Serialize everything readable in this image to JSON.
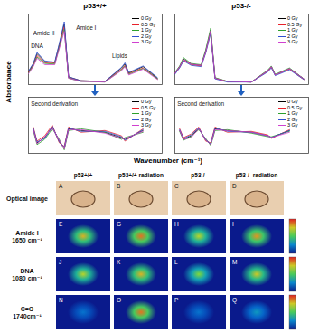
{
  "figure": {
    "y_label": "Absorbance",
    "x_label": "Wavenumber (cm⁻¹)"
  },
  "chart_data": [
    {
      "type": "line",
      "title": "p53+/+",
      "xlim": [
        900,
        3700
      ],
      "ylim": [
        0,
        1.1
      ],
      "tick_labels": false,
      "legend": "top-right",
      "x": [
        900,
        1000,
        1080,
        1240,
        1450,
        1545,
        1650,
        1740,
        2000,
        2500,
        2850,
        2920,
        3000,
        3300,
        3600
      ],
      "series": [
        {
          "name": "0 Gy",
          "color": "#000000",
          "values": [
            0.2,
            0.32,
            0.48,
            0.36,
            0.34,
            0.62,
            0.95,
            0.12,
            0.06,
            0.05,
            0.26,
            0.32,
            0.18,
            0.28,
            0.1
          ]
        },
        {
          "name": "0.5 Gy",
          "color": "#e8202a",
          "values": [
            0.19,
            0.3,
            0.45,
            0.34,
            0.33,
            0.6,
            0.9,
            0.11,
            0.06,
            0.05,
            0.24,
            0.3,
            0.17,
            0.26,
            0.09
          ]
        },
        {
          "name": "1 Gy",
          "color": "#2ca02c",
          "values": [
            0.18,
            0.29,
            0.43,
            0.33,
            0.32,
            0.58,
            0.86,
            0.1,
            0.05,
            0.04,
            0.23,
            0.29,
            0.16,
            0.25,
            0.09
          ]
        },
        {
          "name": "2 Gy",
          "color": "#3050d0",
          "values": [
            0.21,
            0.33,
            0.5,
            0.37,
            0.35,
            0.64,
            0.98,
            0.12,
            0.06,
            0.05,
            0.27,
            0.34,
            0.19,
            0.29,
            0.11
          ]
        },
        {
          "name": "3 Gy",
          "color": "#d040d0",
          "values": [
            0.17,
            0.28,
            0.41,
            0.31,
            0.31,
            0.56,
            0.83,
            0.1,
            0.05,
            0.04,
            0.22,
            0.28,
            0.15,
            0.24,
            0.08
          ]
        }
      ],
      "annotations": [
        {
          "text": "DNA",
          "x": 950,
          "y": 0.6
        },
        {
          "text": "Amide II",
          "x": 1000,
          "y": 0.8
        },
        {
          "text": "Amide I",
          "x": 1900,
          "y": 0.88
        },
        {
          "text": "Lipids",
          "x": 2650,
          "y": 0.45
        }
      ]
    },
    {
      "type": "line",
      "title": "p53-/-",
      "xlim": [
        900,
        3700
      ],
      "ylim": [
        0,
        1.1
      ],
      "tick_labels": false,
      "legend": "top-right",
      "x": [
        900,
        1000,
        1080,
        1240,
        1450,
        1545,
        1650,
        1740,
        2000,
        2500,
        2850,
        2920,
        3000,
        3300,
        3600
      ],
      "series": [
        {
          "name": "0 Gy",
          "color": "#000000",
          "values": [
            0.18,
            0.28,
            0.4,
            0.32,
            0.3,
            0.52,
            0.85,
            0.1,
            0.05,
            0.04,
            0.22,
            0.28,
            0.15,
            0.25,
            0.09
          ]
        },
        {
          "name": "0.5 Gy",
          "color": "#e8202a",
          "values": [
            0.17,
            0.27,
            0.38,
            0.31,
            0.29,
            0.5,
            0.82,
            0.1,
            0.05,
            0.04,
            0.21,
            0.27,
            0.15,
            0.24,
            0.08
          ]
        },
        {
          "name": "1 Gy",
          "color": "#2ca02c",
          "values": [
            0.19,
            0.29,
            0.42,
            0.33,
            0.31,
            0.54,
            0.88,
            0.11,
            0.05,
            0.04,
            0.23,
            0.29,
            0.16,
            0.26,
            0.09
          ]
        },
        {
          "name": "2 Gy",
          "color": "#3050d0",
          "values": [
            0.16,
            0.26,
            0.37,
            0.3,
            0.28,
            0.49,
            0.8,
            0.09,
            0.04,
            0.04,
            0.2,
            0.26,
            0.14,
            0.23,
            0.08
          ]
        },
        {
          "name": "3 Gy",
          "color": "#d040d0",
          "values": [
            0.18,
            0.28,
            0.39,
            0.32,
            0.3,
            0.51,
            0.84,
            0.1,
            0.05,
            0.04,
            0.22,
            0.28,
            0.15,
            0.25,
            0.09
          ]
        }
      ]
    },
    {
      "type": "line",
      "xlim": [
        900,
        3700
      ],
      "ylim": [
        -1.2,
        2.0
      ],
      "tick_labels": false,
      "legend": "top-right",
      "x": [
        1000,
        1080,
        1240,
        1400,
        1545,
        1650,
        1740,
        2000,
        2500,
        2850,
        2920,
        3300
      ],
      "series": [
        {
          "name": "0 Gy",
          "color": "#000000",
          "values": [
            0.2,
            -0.6,
            -0.3,
            0.3,
            -0.5,
            -0.9,
            0.2,
            0.1,
            0.0,
            -0.3,
            -0.4,
            0.1
          ]
        },
        {
          "name": "0.5 Gy",
          "color": "#e8202a",
          "values": [
            0.3,
            -0.5,
            -0.2,
            0.4,
            -0.6,
            -0.8,
            0.3,
            0.0,
            0.1,
            -0.2,
            -0.5,
            0.2
          ]
        },
        {
          "name": "1 Gy",
          "color": "#2ca02c",
          "values": [
            0.1,
            -0.7,
            -0.4,
            0.2,
            -0.4,
            -1.0,
            0.1,
            0.2,
            0.0,
            -0.4,
            -0.3,
            0.0
          ]
        },
        {
          "name": "2 Gy",
          "color": "#3050d0",
          "values": [
            0.25,
            -0.55,
            -0.35,
            0.35,
            -0.55,
            -0.85,
            0.25,
            0.05,
            0.05,
            -0.25,
            -0.45,
            0.15
          ]
        },
        {
          "name": "3 Gy",
          "color": "#d040d0",
          "values": [
            0.15,
            -0.65,
            -0.25,
            0.25,
            -0.45,
            -0.95,
            0.15,
            0.15,
            -0.05,
            -0.35,
            -0.35,
            0.05
          ]
        }
      ],
      "annotations": [
        {
          "text": "Second derivation",
          "x": 950,
          "y": 1.6
        }
      ]
    },
    {
      "type": "line",
      "xlim": [
        900,
        3700
      ],
      "ylim": [
        -1.2,
        2.0
      ],
      "tick_labels": false,
      "legend": "top-right",
      "x": [
        1000,
        1080,
        1240,
        1400,
        1545,
        1650,
        1740,
        2000,
        2500,
        2850,
        2920,
        3300
      ],
      "series": [
        {
          "name": "0 Gy",
          "color": "#000000",
          "values": [
            0.1,
            -0.4,
            -0.2,
            0.2,
            -0.4,
            -0.7,
            0.2,
            0.1,
            0.0,
            -0.2,
            -0.3,
            0.1
          ]
        },
        {
          "name": "0.5 Gy",
          "color": "#e8202a",
          "values": [
            0.2,
            -0.3,
            -0.1,
            0.3,
            -0.5,
            -0.6,
            0.3,
            0.0,
            0.05,
            -0.15,
            -0.35,
            0.15
          ]
        },
        {
          "name": "1 Gy",
          "color": "#2ca02c",
          "values": [
            0.05,
            -0.45,
            -0.25,
            0.15,
            -0.35,
            -0.75,
            0.1,
            0.15,
            -0.05,
            -0.25,
            -0.25,
            0.05
          ]
        },
        {
          "name": "2 Gy",
          "color": "#3050d0",
          "values": [
            0.15,
            -0.35,
            -0.15,
            0.25,
            -0.45,
            -0.65,
            0.25,
            0.05,
            0.0,
            -0.2,
            -0.3,
            0.1
          ]
        },
        {
          "name": "3 Gy",
          "color": "#d040d0",
          "values": [
            0.1,
            -0.4,
            -0.3,
            0.2,
            -0.4,
            -0.7,
            0.15,
            0.1,
            0.0,
            -0.2,
            -0.3,
            0.0
          ]
        }
      ],
      "annotations": [
        {
          "text": "Second derivation",
          "x": 950,
          "y": 1.6
        }
      ]
    }
  ],
  "image_panel": {
    "columns": [
      "p53+/+",
      "p53+/+ radiation",
      "p53-/-",
      "p53-/- radiation"
    ],
    "color_range": [
      0,
      1
    ],
    "rows": [
      {
        "label": [
          "Optical image"
        ],
        "type": "optical",
        "panels": [
          "A",
          "B",
          "C",
          "D"
        ]
      },
      {
        "label": [
          "Amide I",
          "1650 cm⁻¹"
        ],
        "type": "map",
        "panels": [
          "E",
          "G",
          "H",
          "I"
        ],
        "intensity": [
          0.8,
          0.9,
          0.7,
          0.85
        ]
      },
      {
        "label": [
          "DNA",
          "1080 cm⁻¹"
        ],
        "type": "map",
        "panels": [
          "J",
          "K",
          "L",
          "M"
        ],
        "intensity": [
          0.7,
          0.8,
          0.6,
          0.75
        ]
      },
      {
        "label": [
          "C=O",
          "1740cm⁻¹"
        ],
        "type": "map",
        "panels": [
          "N",
          "O",
          "P",
          "Q"
        ],
        "intensity": [
          0.2,
          0.9,
          0.2,
          0.3
        ]
      }
    ]
  }
}
